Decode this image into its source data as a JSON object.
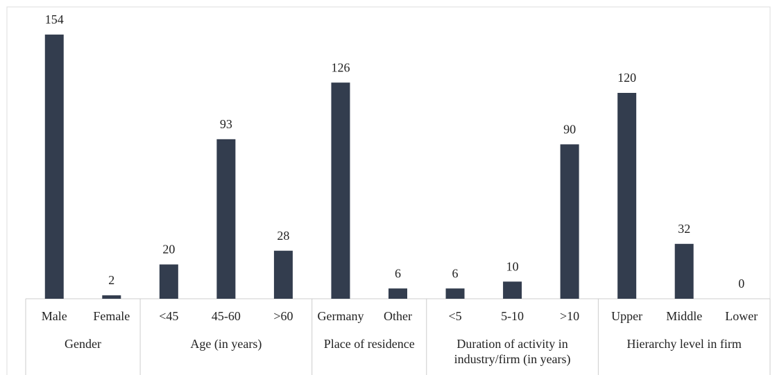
{
  "chart_data": {
    "type": "bar",
    "groups": [
      {
        "name": "Gender",
        "categories": [
          "Male",
          "Female"
        ]
      },
      {
        "name": "Age (in years)",
        "categories": [
          "<45",
          "45-60",
          ">60"
        ]
      },
      {
        "name": "Place of residence",
        "categories": [
          "Germany",
          "Other"
        ]
      },
      {
        "name": "Duration of activity in industry/firm (in years)",
        "categories": [
          "<5",
          "5-10",
          ">10"
        ]
      },
      {
        "name": "Hierarchy level in firm",
        "categories": [
          "Upper",
          "Middle",
          "Lower"
        ]
      }
    ],
    "values": [
      154,
      2,
      20,
      93,
      28,
      126,
      6,
      6,
      10,
      90,
      120,
      32,
      0
    ],
    "color": "#333d4e",
    "ylim": [
      0,
      160
    ]
  }
}
